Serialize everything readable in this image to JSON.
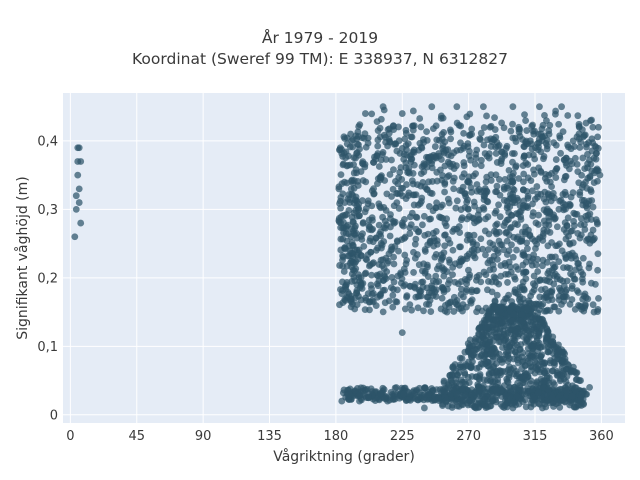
{
  "chart_data": {
    "type": "scatter",
    "title": "År 1979 - 2019",
    "subtitle": "Koordinat (Sweref 99 TM): E 338937, N 6312827",
    "xlabel": "Vågriktning (grader)",
    "ylabel": "Signifikant våghöjd (m)",
    "xlim": [
      -5,
      376
    ],
    "ylim": [
      -0.012,
      0.47
    ],
    "xticks": [
      0,
      45,
      90,
      135,
      180,
      225,
      270,
      315,
      360
    ],
    "xtick_labels": [
      "0",
      "45",
      "90",
      "135",
      "180",
      "225",
      "270",
      "315",
      "360"
    ],
    "yticks": [
      0,
      0.1,
      0.2,
      0.3,
      0.4
    ],
    "ytick_labels": [
      "0",
      "0,1",
      "0,2",
      "0,3",
      "0,4"
    ],
    "grid": true,
    "marker_color": "#2e5569",
    "background": "#e5ecf6",
    "series": [
      {
        "points": [
          [
            3,
            0.26
          ],
          [
            4,
            0.3
          ],
          [
            4,
            0.32
          ],
          [
            5,
            0.35
          ],
          [
            5,
            0.37
          ],
          [
            5,
            0.39
          ],
          [
            6,
            0.31
          ],
          [
            6,
            0.33
          ],
          [
            7,
            0.28
          ],
          [
            7,
            0.37
          ],
          [
            6,
            0.39
          ],
          [
            184,
            0.02
          ],
          [
            188,
            0.03
          ],
          [
            196,
            0.02
          ],
          [
            205,
            0.03
          ],
          [
            215,
            0.02
          ],
          [
            225,
            0.12
          ],
          [
            182,
            0.33
          ],
          [
            183,
            0.39
          ],
          [
            186,
            0.31
          ],
          [
            190,
            0.41
          ],
          [
            200,
            0.44
          ],
          [
            212,
            0.45
          ],
          [
            225,
            0.44
          ],
          [
            245,
            0.45
          ],
          [
            262,
            0.45
          ],
          [
            280,
            0.45
          ],
          [
            300,
            0.45
          ],
          [
            318,
            0.45
          ],
          [
            333,
            0.45
          ],
          [
            345,
            0.42
          ],
          [
            358,
            0.42
          ],
          [
            359,
            0.35
          ],
          [
            358,
            0.17
          ],
          [
            355,
            0.15
          ],
          [
            345,
            0.05
          ],
          [
            350,
            0.03
          ],
          [
            352,
            0.04
          ],
          [
            240,
            0.01
          ],
          [
            275,
            0.01
          ],
          [
            300,
            0.01
          ],
          [
            320,
            0.01
          ]
        ]
      }
    ]
  }
}
